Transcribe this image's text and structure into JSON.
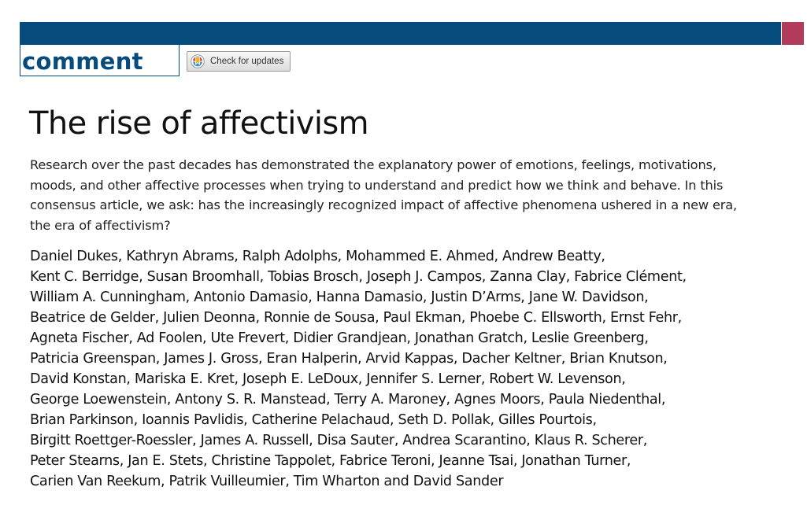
{
  "colors": {
    "brand_blue": "#054c7d",
    "accent_pink": "#b23a5b"
  },
  "header": {
    "section_label": "comment",
    "check_updates_label": "Check for updates",
    "check_updates_icon": "crossmark-icon"
  },
  "article": {
    "title": "The rise of affectivism",
    "standfirst_lines": [
      "Research over the past decades has demonstrated the explanatory power of emotions, feelings, motivations,",
      "moods, and other affective processes when trying to understand and predict how we think and behave. In this",
      "consensus article, we ask: has the increasingly recognized impact of affective phenomena ushered in a new era,",
      "the era of affectivism?"
    ],
    "author_lines": [
      "Daniel Dukes, Kathryn Abrams, Ralph Adolphs, Mohammed E. Ahmed, Andrew Beatty,",
      "Kent C. Berridge, Susan Broomhall, Tobias Brosch, Joseph J. Campos, Zanna Clay, Fabrice Clément,",
      "William A. Cunningham, Antonio Damasio, Hanna Damasio, Justin D’Arms, Jane W. Davidson,",
      "Beatrice de Gelder, Julien Deonna, Ronnie de Sousa, Paul Ekman, Phoebe C. Ellsworth, Ernst Fehr,",
      "Agneta Fischer, Ad Foolen, Ute Frevert, Didier Grandjean, Jonathan Gratch, Leslie Greenberg,",
      "Patricia Greenspan, James J. Gross, Eran Halperin, Arvid Kappas, Dacher Keltner, Brian Knutson,",
      "David Konstan, Mariska E. Kret, Joseph E. LeDoux, Jennifer S. Lerner, Robert W. Levenson,",
      "George Loewenstein, Antony S. R. Manstead, Terry A. Maroney, Agnes Moors, Paula Niedenthal,",
      "Brian Parkinson, Ioannis Pavlidis, Catherine Pelachaud, Seth D. Pollak, Gilles Pourtois,",
      "Birgitt Roettger-Roessler, James A. Russell, Disa Sauter, Andrea Scarantino, Klaus R. Scherer,",
      "Peter Stearns, Jan E. Stets, Christine Tappolet, Fabrice Teroni, Jeanne Tsai, Jonathan Turner,",
      "Carien Van Reekum, Patrik Vuilleumier, Tim Wharton and David Sander"
    ]
  }
}
